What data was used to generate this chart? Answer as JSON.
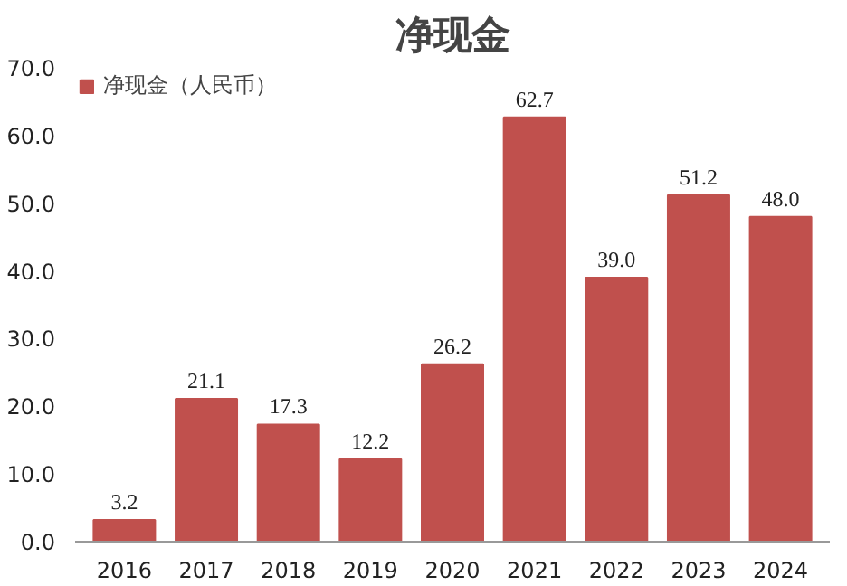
{
  "chart_data": {
    "type": "bar",
    "title": "净现金",
    "categories": [
      "2016",
      "2017",
      "2018",
      "2019",
      "2020",
      "2021",
      "2022",
      "2023",
      "2024"
    ],
    "series": [
      {
        "name": "净现金（人民币）",
        "color": "#c0504d",
        "values": [
          3.2,
          21.1,
          17.3,
          12.2,
          26.2,
          62.7,
          39.0,
          51.2,
          48.0
        ],
        "value_labels": [
          "3.2",
          "21.1",
          "17.3",
          "12.2",
          "26.2",
          "62.7",
          "39.0",
          "51.2",
          "48.0"
        ]
      }
    ],
    "ylim": [
      0,
      70
    ],
    "yticks": [
      {
        "value": 0,
        "label": "0.0"
      },
      {
        "value": 10,
        "label": "10.0"
      },
      {
        "value": 20,
        "label": "20.0"
      },
      {
        "value": 30,
        "label": "30.0"
      },
      {
        "value": 40,
        "label": "40.0"
      },
      {
        "value": 50,
        "label": "50.0"
      },
      {
        "value": 60,
        "label": "60.0"
      },
      {
        "value": 70,
        "label": "70.0"
      }
    ],
    "grid": false,
    "legend": "top left"
  }
}
